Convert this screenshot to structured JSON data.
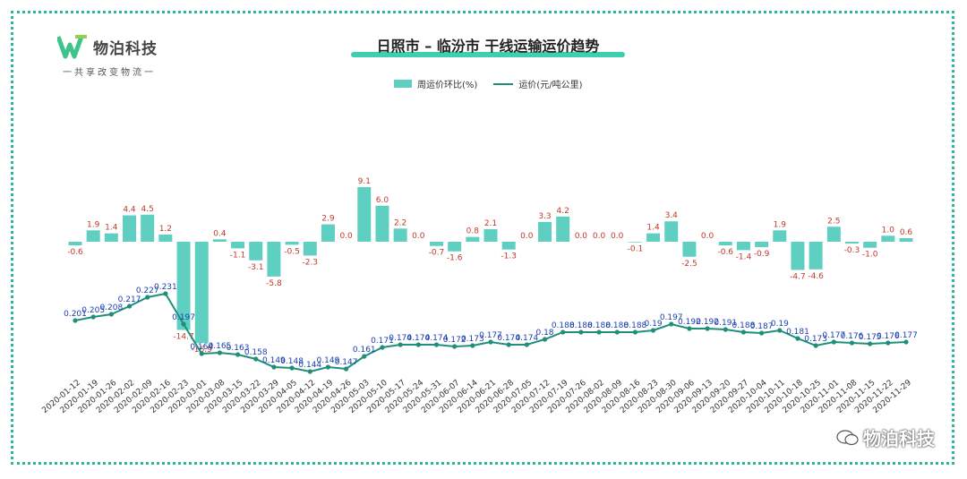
{
  "logo": {
    "name": "物泊科技",
    "slogan": "一共享改变物流一"
  },
  "title": "日照市 – 临汾市 干线运输运价趋势",
  "legend": {
    "bar": "周运价环比(%)",
    "line": "运价(元/吨公里)"
  },
  "watermark": "物泊科技",
  "colors": {
    "bar": "#5ecfc0",
    "line": "#1f8f7a",
    "bar_label": "#c0392b",
    "line_label": "#1a3fb0",
    "frame": "#2bb89a"
  },
  "chart_data": {
    "type": "bar",
    "categories": [
      "2020-01-12",
      "2020-01-19",
      "2020-01-26",
      "2020-02-02",
      "2020-02-09",
      "2020-02-16",
      "2020-02-23",
      "2020-03-01",
      "2020-03-08",
      "2020-03-15",
      "2020-03-22",
      "2020-03-29",
      "2020-04-05",
      "2020-04-12",
      "2020-04-19",
      "2020-04-26",
      "2020-05-03",
      "2020-05-10",
      "2020-05-17",
      "2020-05-24",
      "2020-05-31",
      "2020-06-07",
      "2020-06-14",
      "2020-06-21",
      "2020-06-28",
      "2020-07-05",
      "2020-07-12",
      "2020-07-19",
      "2020-07-26",
      "2020-08-02",
      "2020-08-09",
      "2020-08-16",
      "2020-08-23",
      "2020-08-30",
      "2020-09-06",
      "2020-09-13",
      "2020-09-20",
      "2020-09-27",
      "2020-10-04",
      "2020-10-11",
      "2020-10-18",
      "2020-10-25",
      "2020-11-01",
      "2020-11-08",
      "2020-11-15",
      "2020-11-22",
      "2020-11-29"
    ],
    "series": [
      {
        "name": "周运价环比(%)",
        "type": "bar",
        "values": [
          -0.6,
          1.9,
          1.4,
          4.4,
          4.5,
          1.2,
          -14.7,
          -16.9,
          0.4,
          -1.1,
          -3.1,
          -5.8,
          -0.5,
          -2.3,
          2.9,
          0.0,
          9.1,
          6.0,
          2.2,
          0.0,
          -0.7,
          -1.6,
          0.8,
          2.1,
          -1.3,
          0.0,
          3.3,
          4.2,
          0.0,
          0.0,
          0.0,
          -0.1,
          1.4,
          3.4,
          -2.5,
          0.0,
          -0.6,
          -1.4,
          -0.9,
          1.9,
          -4.7,
          -4.6,
          2.5,
          -0.3,
          -1.0,
          1.0,
          0.6
        ],
        "labels": [
          "-0.6",
          "1.9",
          "1.4",
          "4.4",
          "4.5",
          "1.2",
          "-14.7",
          "-16.9",
          "0.4",
          "-1.1",
          "-3.1",
          "-5.8",
          "-0.5",
          "-2.3",
          "2.9",
          "0.0",
          "9.1",
          "6.0",
          "2.2",
          "0.0",
          "-0.7",
          "-1.6",
          "0.8",
          "2.1",
          "-1.3",
          "0.0",
          "3.3",
          "4.2",
          "0.0",
          "0.0",
          "0.0",
          "-0.1",
          "1.4",
          "3.4",
          "-2.5",
          "0.0",
          "-0.6",
          "-1.4",
          "-0.9",
          "1.9",
          "-4.7",
          "-4.6",
          "2.5",
          "-0.3",
          "-1.0",
          "1.0",
          "0.6"
        ]
      },
      {
        "name": "运价(元/吨公里)",
        "type": "line",
        "values": [
          0.201,
          0.205,
          0.208,
          0.217,
          0.227,
          0.231,
          0.197,
          0.164,
          0.165,
          0.163,
          0.158,
          0.149,
          0.148,
          0.144,
          0.149,
          0.147,
          0.161,
          0.171,
          0.174,
          0.174,
          0.174,
          0.172,
          0.173,
          0.177,
          0.174,
          0.174,
          0.18,
          0.188,
          0.188,
          0.188,
          0.188,
          0.188,
          0.19,
          0.197,
          0.192,
          0.192,
          0.191,
          0.188,
          0.187,
          0.19,
          0.181,
          0.173,
          0.177,
          0.176,
          0.175,
          0.176,
          0.177
        ],
        "labels": [
          "0.201",
          "0.205",
          "0.208",
          "0.217",
          "0.227",
          "0.231",
          "0.197",
          "0.164",
          "0.165",
          "0.163",
          "0.158",
          "0.149",
          "0.148",
          "0.144",
          "0.149",
          "0.147",
          "0.161",
          "0.171",
          "0.174",
          "0.174",
          "0.174",
          "0.172",
          "0.173",
          "0.177",
          "0.174",
          "0.174",
          "0.18",
          "0.188",
          "0.188",
          "0.188",
          "0.188",
          "0.188",
          "0.19",
          "0.197",
          "0.192",
          "0.192",
          "0.191",
          "0.188",
          "0.187",
          "0.19",
          "0.181",
          "0.173",
          "0.177",
          "0.176",
          "0.175",
          "0.176",
          "0.177"
        ]
      }
    ],
    "xlabel": "",
    "ylabel": "",
    "grid": false,
    "legend_position": "top-center"
  }
}
